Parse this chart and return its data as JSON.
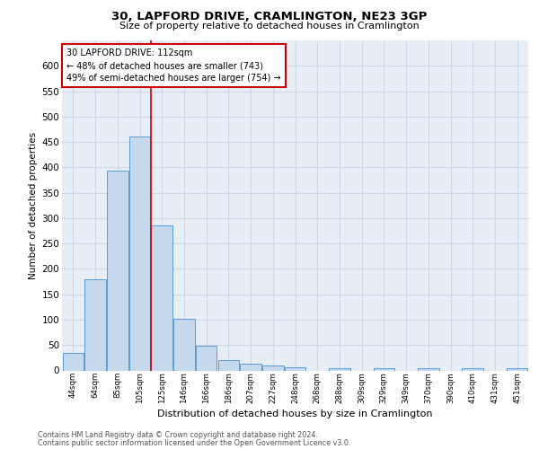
{
  "title1": "30, LAPFORD DRIVE, CRAMLINGTON, NE23 3GP",
  "title2": "Size of property relative to detached houses in Cramlington",
  "xlabel": "Distribution of detached houses by size in Cramlington",
  "ylabel": "Number of detached properties",
  "footer1": "Contains HM Land Registry data © Crown copyright and database right 2024.",
  "footer2": "Contains public sector information licensed under the Open Government Licence v3.0.",
  "annotation_line1": "30 LAPFORD DRIVE: 112sqm",
  "annotation_line2": "← 48% of detached houses are smaller (743)",
  "annotation_line3": "49% of semi-detached houses are larger (754) →",
  "bar_values": [
    35,
    180,
    393,
    460,
    285,
    102,
    48,
    20,
    14,
    9,
    6,
    0,
    5,
    0,
    5,
    0,
    5,
    0,
    5,
    0,
    5
  ],
  "categories": [
    "44sqm",
    "64sqm",
    "85sqm",
    "105sqm",
    "125sqm",
    "146sqm",
    "166sqm",
    "186sqm",
    "207sqm",
    "227sqm",
    "248sqm",
    "268sqm",
    "288sqm",
    "309sqm",
    "329sqm",
    "349sqm",
    "370sqm",
    "390sqm",
    "410sqm",
    "431sqm",
    "451sqm"
  ],
  "bar_color": "#c5d8ec",
  "bar_edge_color": "#5b9bd5",
  "red_line_index": 3.5,
  "ylim": [
    0,
    650
  ],
  "yticks": [
    0,
    50,
    100,
    150,
    200,
    250,
    300,
    350,
    400,
    450,
    500,
    550,
    600
  ],
  "annotation_box_color": "#ffffff",
  "annotation_box_edge": "#cc0000",
  "grid_color": "#d0d8e8",
  "background_color": "#e8eef5"
}
